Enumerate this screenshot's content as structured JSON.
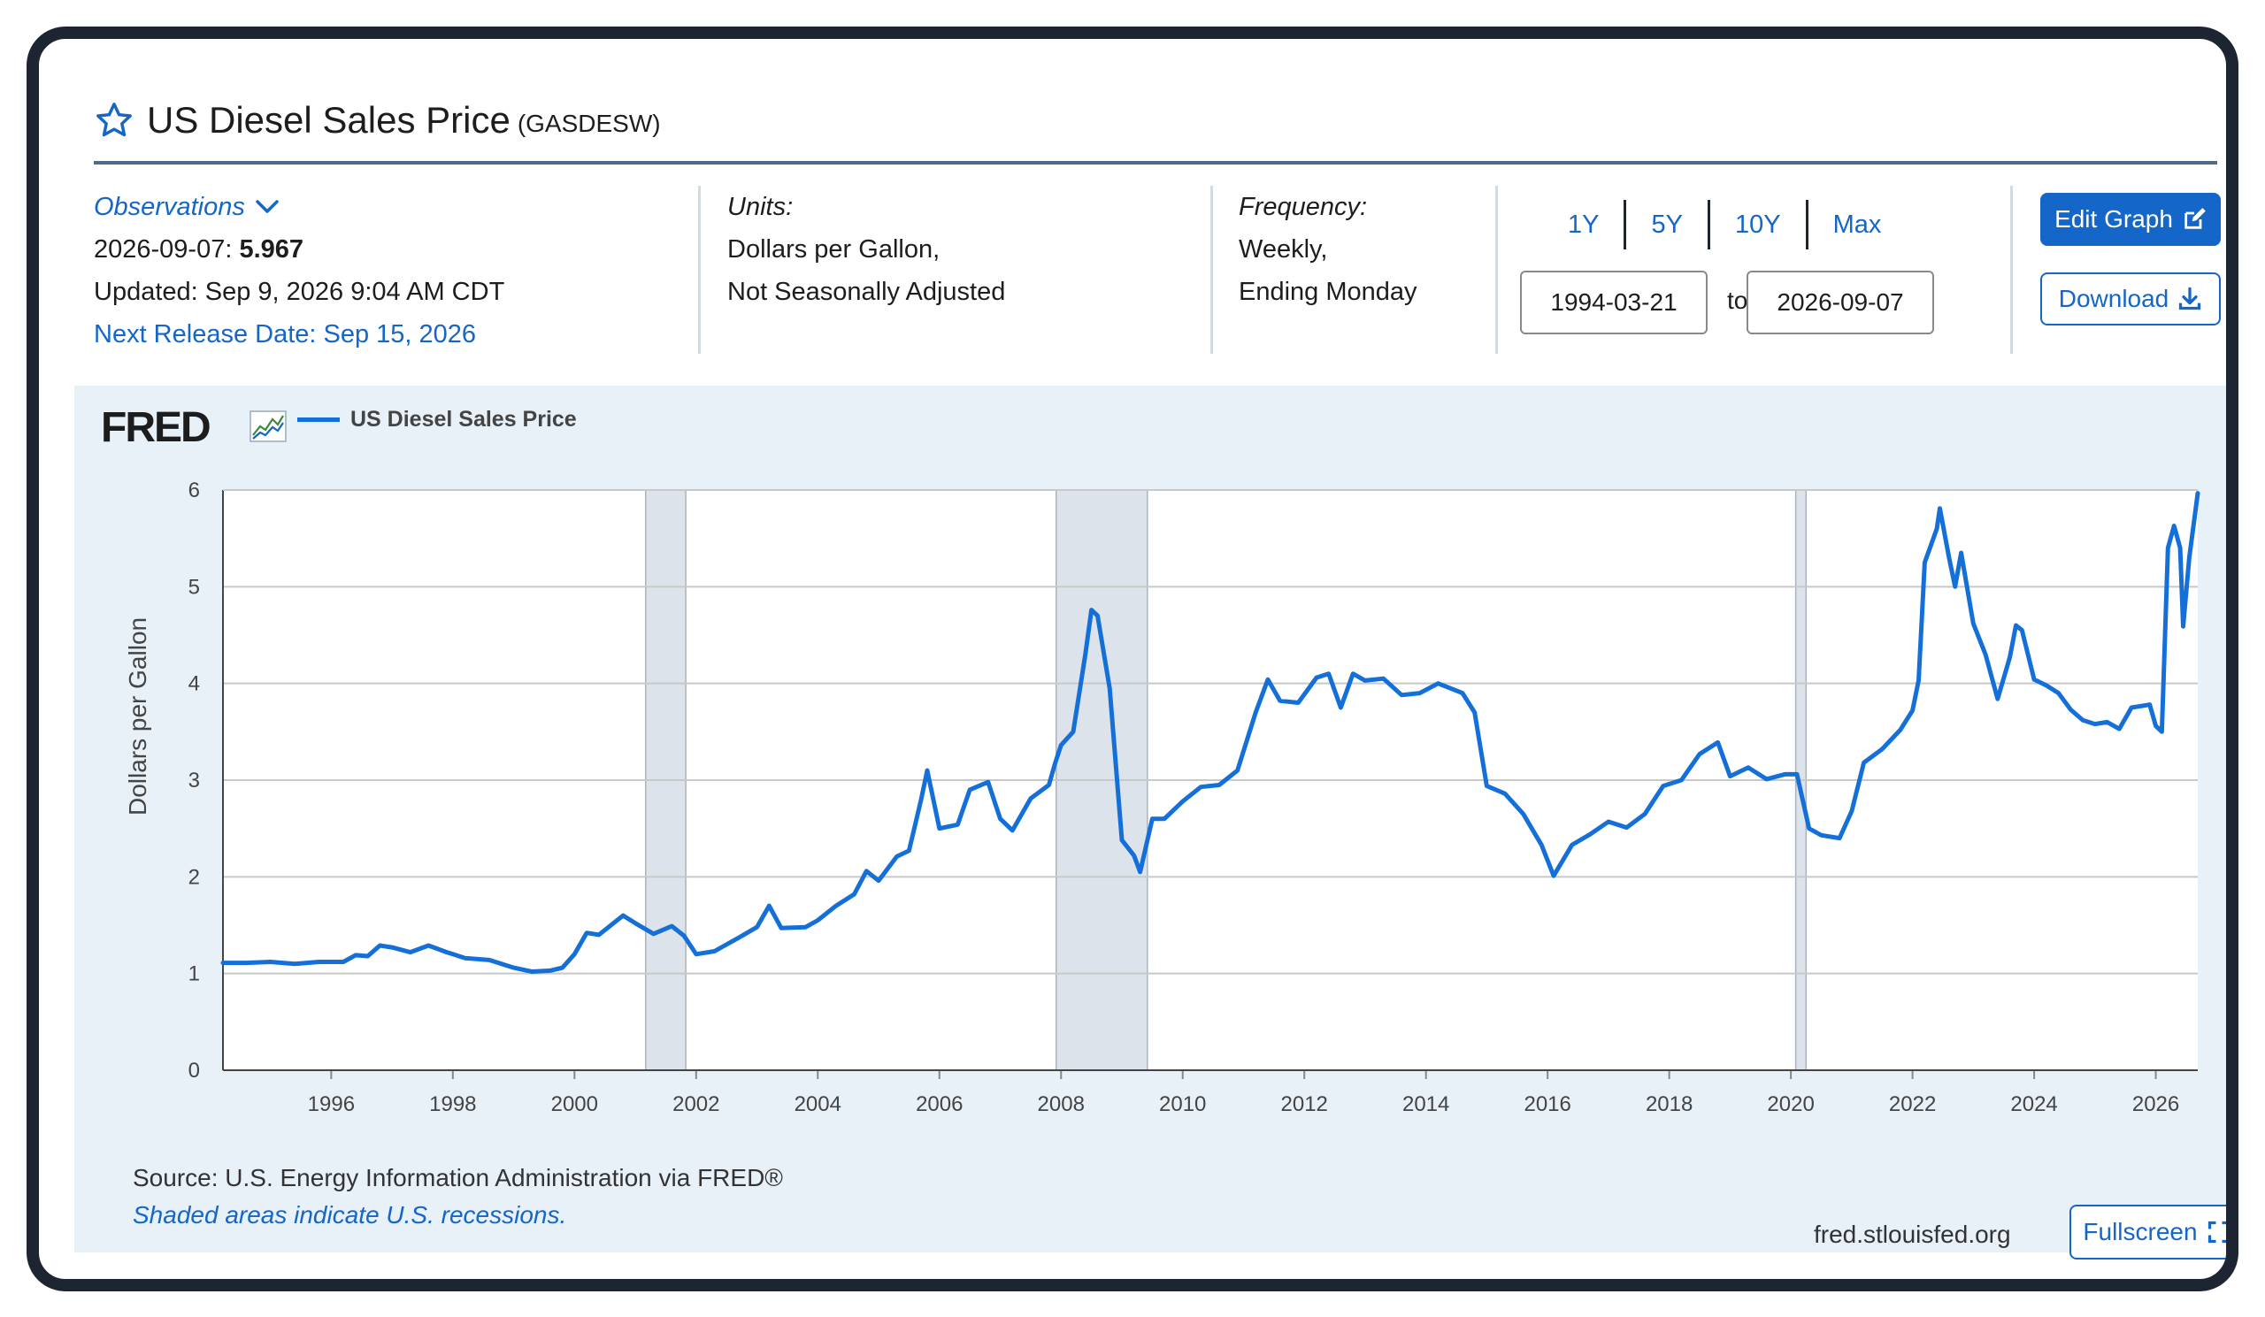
{
  "header": {
    "title": "US Diesel Sales Price",
    "series_id": "(GASDESW)",
    "star_icon": "star-outline-icon"
  },
  "meta": {
    "observations_label": "Observations",
    "observation_date": "2026-09-07:",
    "observation_value": "5.967",
    "updated": "Updated: Sep 9, 2026 9:04 AM CDT",
    "next_release": "Next Release Date: Sep 15, 2026",
    "units_label": "Units:",
    "units_line1": "Dollars per Gallon,",
    "units_line2": "Not Seasonally Adjusted",
    "frequency_label": "Frequency:",
    "frequency_line1": "Weekly,",
    "frequency_line2": "Ending Monday"
  },
  "range": {
    "buttons": [
      "1Y",
      "5Y",
      "10Y",
      "Max"
    ],
    "start": "1994-03-21",
    "to_label": "to",
    "end": "2026-09-07"
  },
  "actions": {
    "edit_graph": "Edit Graph",
    "download": "Download",
    "fullscreen": "Fullscreen"
  },
  "footer": {
    "source": "Source: U.S. Energy Information Administration via FRED®",
    "shaded_note": "Shaded areas indicate U.S. recessions.",
    "site": "fred.stlouisfed.org"
  },
  "logo_text": "FRED",
  "colors": {
    "accent": "#1466c8",
    "series": "#1470d8",
    "panel": "#e8f0f8",
    "recession": "#dde3ea"
  },
  "chart_data": {
    "type": "line",
    "title": "",
    "ylabel": "Dollars per Gallon",
    "xlabel": "",
    "xlim": [
      1994.22,
      2026.69
    ],
    "ylim": [
      0,
      6
    ],
    "y_ticks": [
      0,
      1,
      2,
      3,
      4,
      5,
      6
    ],
    "x_ticks": [
      1996,
      1998,
      2000,
      2002,
      2004,
      2006,
      2008,
      2010,
      2012,
      2014,
      2016,
      2018,
      2020,
      2022,
      2024,
      2026
    ],
    "grid": true,
    "legend": "top-left",
    "recessions": [
      [
        2001.17,
        2001.83
      ],
      [
        2007.92,
        2009.42
      ],
      [
        2020.08,
        2020.25
      ]
    ],
    "series": [
      {
        "name": "US Diesel Sales Price",
        "points": [
          [
            1994.22,
            1.11
          ],
          [
            1994.6,
            1.11
          ],
          [
            1995.0,
            1.12
          ],
          [
            1995.4,
            1.1
          ],
          [
            1995.8,
            1.12
          ],
          [
            1996.2,
            1.12
          ],
          [
            1996.4,
            1.19
          ],
          [
            1996.6,
            1.18
          ],
          [
            1996.8,
            1.29
          ],
          [
            1997.0,
            1.27
          ],
          [
            1997.3,
            1.22
          ],
          [
            1997.6,
            1.29
          ],
          [
            1997.9,
            1.22
          ],
          [
            1998.2,
            1.16
          ],
          [
            1998.6,
            1.14
          ],
          [
            1999.0,
            1.06
          ],
          [
            1999.3,
            1.02
          ],
          [
            1999.6,
            1.03
          ],
          [
            1999.8,
            1.06
          ],
          [
            2000.0,
            1.2
          ],
          [
            2000.2,
            1.42
          ],
          [
            2000.4,
            1.4
          ],
          [
            2000.8,
            1.6
          ],
          [
            2001.0,
            1.52
          ],
          [
            2001.3,
            1.41
          ],
          [
            2001.6,
            1.49
          ],
          [
            2001.8,
            1.39
          ],
          [
            2002.0,
            1.2
          ],
          [
            2002.3,
            1.23
          ],
          [
            2002.7,
            1.37
          ],
          [
            2003.0,
            1.48
          ],
          [
            2003.2,
            1.7
          ],
          [
            2003.4,
            1.47
          ],
          [
            2003.8,
            1.48
          ],
          [
            2004.0,
            1.55
          ],
          [
            2004.3,
            1.7
          ],
          [
            2004.6,
            1.82
          ],
          [
            2004.8,
            2.06
          ],
          [
            2005.0,
            1.96
          ],
          [
            2005.3,
            2.21
          ],
          [
            2005.5,
            2.27
          ],
          [
            2005.7,
            2.8
          ],
          [
            2005.8,
            3.1
          ],
          [
            2006.0,
            2.5
          ],
          [
            2006.3,
            2.54
          ],
          [
            2006.5,
            2.9
          ],
          [
            2006.8,
            2.98
          ],
          [
            2007.0,
            2.6
          ],
          [
            2007.2,
            2.48
          ],
          [
            2007.5,
            2.81
          ],
          [
            2007.8,
            2.95
          ],
          [
            2007.9,
            3.17
          ],
          [
            2008.0,
            3.36
          ],
          [
            2008.2,
            3.5
          ],
          [
            2008.4,
            4.3
          ],
          [
            2008.5,
            4.76
          ],
          [
            2008.6,
            4.7
          ],
          [
            2008.8,
            3.95
          ],
          [
            2009.0,
            2.38
          ],
          [
            2009.2,
            2.22
          ],
          [
            2009.3,
            2.05
          ],
          [
            2009.5,
            2.6
          ],
          [
            2009.7,
            2.6
          ],
          [
            2010.0,
            2.78
          ],
          [
            2010.3,
            2.93
          ],
          [
            2010.6,
            2.95
          ],
          [
            2010.9,
            3.1
          ],
          [
            2011.2,
            3.7
          ],
          [
            2011.4,
            4.04
          ],
          [
            2011.6,
            3.82
          ],
          [
            2011.9,
            3.8
          ],
          [
            2012.2,
            4.06
          ],
          [
            2012.4,
            4.1
          ],
          [
            2012.6,
            3.75
          ],
          [
            2012.8,
            4.1
          ],
          [
            2013.0,
            4.03
          ],
          [
            2013.3,
            4.05
          ],
          [
            2013.6,
            3.88
          ],
          [
            2013.9,
            3.9
          ],
          [
            2014.2,
            4.0
          ],
          [
            2014.6,
            3.9
          ],
          [
            2014.8,
            3.7
          ],
          [
            2015.0,
            2.94
          ],
          [
            2015.3,
            2.86
          ],
          [
            2015.6,
            2.65
          ],
          [
            2015.9,
            2.33
          ],
          [
            2016.1,
            2.01
          ],
          [
            2016.4,
            2.33
          ],
          [
            2016.7,
            2.44
          ],
          [
            2017.0,
            2.57
          ],
          [
            2017.3,
            2.51
          ],
          [
            2017.6,
            2.65
          ],
          [
            2017.9,
            2.94
          ],
          [
            2018.2,
            3.0
          ],
          [
            2018.5,
            3.27
          ],
          [
            2018.8,
            3.39
          ],
          [
            2019.0,
            3.04
          ],
          [
            2019.3,
            3.13
          ],
          [
            2019.6,
            3.01
          ],
          [
            2019.9,
            3.06
          ],
          [
            2020.1,
            3.06
          ],
          [
            2020.3,
            2.5
          ],
          [
            2020.5,
            2.43
          ],
          [
            2020.8,
            2.4
          ],
          [
            2021.0,
            2.68
          ],
          [
            2021.2,
            3.18
          ],
          [
            2021.5,
            3.32
          ],
          [
            2021.8,
            3.52
          ],
          [
            2022.0,
            3.72
          ],
          [
            2022.1,
            4.03
          ],
          [
            2022.2,
            5.25
          ],
          [
            2022.4,
            5.6
          ],
          [
            2022.45,
            5.81
          ],
          [
            2022.6,
            5.3
          ],
          [
            2022.7,
            5.0
          ],
          [
            2022.8,
            5.35
          ],
          [
            2023.0,
            4.62
          ],
          [
            2023.2,
            4.3
          ],
          [
            2023.4,
            3.84
          ],
          [
            2023.6,
            4.27
          ],
          [
            2023.7,
            4.6
          ],
          [
            2023.8,
            4.55
          ],
          [
            2024.0,
            4.04
          ],
          [
            2024.2,
            3.98
          ],
          [
            2024.4,
            3.9
          ],
          [
            2024.6,
            3.73
          ],
          [
            2024.8,
            3.62
          ],
          [
            2025.0,
            3.58
          ],
          [
            2025.2,
            3.6
          ],
          [
            2025.4,
            3.53
          ],
          [
            2025.6,
            3.75
          ],
          [
            2025.9,
            3.78
          ],
          [
            2026.0,
            3.56
          ],
          [
            2026.1,
            3.5
          ],
          [
            2026.2,
            5.4
          ],
          [
            2026.3,
            5.63
          ],
          [
            2026.4,
            5.4
          ],
          [
            2026.45,
            4.59
          ],
          [
            2026.55,
            5.3
          ],
          [
            2026.69,
            5.967
          ]
        ]
      }
    ]
  }
}
